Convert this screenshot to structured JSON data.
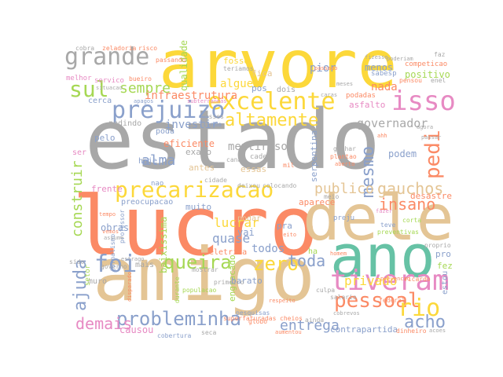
{
  "palette": {
    "gray": "#a8a8a8",
    "yellow": "#fcd83a",
    "tan": "#e4c595",
    "coral": "#fb8a65",
    "teal": "#66c2a5",
    "blue": "#8aa0cb",
    "green": "#a6d854",
    "pink": "#e78ac3"
  },
  "words": [
    {
      "text": "estado",
      "color": "gray"
    },
    {
      "text": "lucro",
      "color": "coral"
    },
    {
      "text": "arvore",
      "color": "yellow"
    },
    {
      "text": "amigo",
      "color": "tan"
    },
    {
      "text": "dele",
      "color": "tan"
    },
    {
      "text": "ano",
      "color": "teal"
    },
    {
      "text": "tiveram",
      "color": "pink"
    },
    {
      "text": "precarizacao",
      "color": "yellow"
    },
    {
      "text": "excelente",
      "color": "yellow"
    },
    {
      "text": "prejuizo",
      "color": "blue"
    },
    {
      "text": "grande",
      "color": "gray"
    },
    {
      "text": "isso",
      "color": "pink"
    },
    {
      "text": "altamente",
      "color": "yellow"
    },
    {
      "text": "sul",
      "color": "green"
    },
    {
      "text": "pessoal",
      "color": "coral"
    },
    {
      "text": "rio",
      "color": "yellow"
    },
    {
      "text": "probleminha",
      "color": "blue"
    },
    {
      "text": "foi",
      "color": "blue"
    },
    {
      "text": "zero",
      "color": "yellow"
    },
    {
      "text": "queira",
      "color": "green"
    },
    {
      "text": "acho",
      "color": "blue"
    },
    {
      "text": "pedi",
      "color": "coral"
    },
    {
      "text": "mesmo",
      "color": "blue"
    },
    {
      "text": "governador",
      "color": "gray"
    },
    {
      "text": "insano",
      "color": "coral"
    },
    {
      "text": "gauchos",
      "color": "tan"
    },
    {
      "text": "publico",
      "color": "tan"
    },
    {
      "text": "privado",
      "color": "yellow"
    },
    {
      "text": "construir",
      "color": "green"
    },
    {
      "text": "ajuda",
      "color": "blue"
    },
    {
      "text": "demais",
      "color": "pink"
    },
    {
      "text": "toda",
      "color": "blue"
    },
    {
      "text": "todos",
      "color": "blue"
    },
    {
      "text": "sempre",
      "color": "green"
    },
    {
      "text": "investir",
      "color": "blue"
    },
    {
      "text": "alma",
      "color": "blue"
    },
    {
      "text": "infraestrutura",
      "color": "coral"
    },
    {
      "text": "mentiroso",
      "color": "gray"
    },
    {
      "text": "entrega",
      "color": "blue"
    },
    {
      "text": "quase",
      "color": "blue"
    },
    {
      "text": "lucrar",
      "color": "yellow"
    },
    {
      "text": "nada",
      "color": "coral"
    },
    {
      "text": "menos",
      "color": "blue"
    },
    {
      "text": "pior",
      "color": "blue"
    },
    {
      "text": "alguem",
      "color": "yellow"
    },
    {
      "text": "qualidade",
      "color": "green"
    },
    {
      "text": "podem",
      "color": "blue"
    },
    {
      "text": "desastre",
      "color": "coral"
    },
    {
      "text": "asfalto",
      "color": "pink"
    },
    {
      "text": "serpentina",
      "color": "blue"
    },
    {
      "text": "eficiente",
      "color": "coral"
    },
    {
      "text": "exato",
      "color": "gray"
    },
    {
      "text": "vai",
      "color": "blue"
    },
    {
      "text": "obras",
      "color": "blue"
    },
    {
      "text": "muito",
      "color": "blue"
    },
    {
      "text": "baixissima",
      "color": "green"
    },
    {
      "text": "engracado",
      "color": "green"
    },
    {
      "text": "barato",
      "color": "blue"
    },
    {
      "text": "contrapartida",
      "color": "blue"
    },
    {
      "text": "causou",
      "color": "pink"
    },
    {
      "text": "frente",
      "color": "pink"
    },
    {
      "text": "preocupacao",
      "color": "blue"
    },
    {
      "text": "positivo",
      "color": "green"
    },
    {
      "text": "competicao",
      "color": "coral"
    },
    {
      "text": "melhor",
      "color": "pink"
    },
    {
      "text": "servico",
      "color": "pink"
    },
    {
      "text": "fica",
      "color": "tan"
    },
    {
      "text": "fosse",
      "color": "yellow"
    },
    {
      "text": "dois",
      "color": "gray"
    },
    {
      "text": "pos",
      "color": "blue"
    },
    {
      "text": "pedindo",
      "color": "gray"
    },
    {
      "text": "hoje",
      "color": "blue"
    },
    {
      "text": "cerca",
      "color": "blue"
    },
    {
      "text": "poda",
      "color": "blue"
    },
    {
      "text": "antes",
      "color": "tan"
    },
    {
      "text": "pelo",
      "color": "blue"
    },
    {
      "text": "ser",
      "color": "pink"
    },
    {
      "text": "nao",
      "color": "blue"
    },
    {
      "text": "essas",
      "color": "tan"
    },
    {
      "text": "cade",
      "color": "gray"
    },
    {
      "text": "podar",
      "color": "tan"
    },
    {
      "text": "eletrica",
      "color": "coral"
    },
    {
      "text": "pra",
      "color": "blue"
    },
    {
      "text": "aparece",
      "color": "coral"
    },
    {
      "text": "ha",
      "color": "green"
    },
    {
      "text": "mais",
      "color": "gray"
    },
    {
      "text": "muro",
      "color": "gray"
    },
    {
      "text": "estou",
      "color": "blue"
    },
    {
      "text": "fez",
      "color": "green"
    },
    {
      "text": "pro",
      "color": "blue"
    },
    {
      "text": "sabesp",
      "color": "blue"
    },
    {
      "text": "podadas",
      "color": "coral"
    },
    {
      "text": "ganhar",
      "color": "gray"
    },
    {
      "text": "plantao",
      "color": "coral"
    },
    {
      "text": "preju",
      "color": "blue"
    },
    {
      "text": "teve",
      "color": "blue"
    },
    {
      "text": "preventivas",
      "color": "green"
    },
    {
      "text": "corta",
      "color": "green"
    },
    {
      "text": "pensou",
      "color": "coral"
    },
    {
      "text": "enel",
      "color": "gray"
    },
    {
      "text": "linda",
      "color": "blue"
    },
    {
      "text": "desses",
      "color": "gray"
    },
    {
      "text": "canal",
      "color": "gray"
    },
    {
      "text": "mil",
      "color": "coral"
    },
    {
      "text": "faz",
      "color": "gray"
    },
    {
      "text": "cobra",
      "color": "gray"
    },
    {
      "text": "zeladoria",
      "color": "coral"
    },
    {
      "text": "risco",
      "color": "coral"
    },
    {
      "text": "passando",
      "color": "coral"
    },
    {
      "text": "bueiro",
      "color": "coral"
    },
    {
      "text": "teriamos",
      "color": "gray"
    },
    {
      "text": "deixou",
      "color": "gray"
    },
    {
      "text": "colocando",
      "color": "gray"
    },
    {
      "text": "cidade",
      "color": "gray"
    },
    {
      "text": "meio",
      "color": "gray"
    },
    {
      "text": "sido",
      "color": "gray"
    },
    {
      "text": "governo",
      "color": "gray"
    },
    {
      "text": "mostrar",
      "color": "gray"
    },
    {
      "text": "durante",
      "color": "green"
    },
    {
      "text": "pesquisas",
      "color": "blue"
    },
    {
      "text": "superfaturadas",
      "color": "coral"
    },
    {
      "text": "passado",
      "color": "coral"
    },
    {
      "text": "culpa",
      "color": "gray"
    },
    {
      "text": "salario",
      "color": "gray"
    },
    {
      "text": "federal",
      "color": "coral"
    },
    {
      "text": "ricardo",
      "color": "coral"
    },
    {
      "text": "proprio",
      "color": "gray"
    },
    {
      "text": "globo",
      "color": "coral"
    },
    {
      "text": "cheios",
      "color": "coral"
    },
    {
      "text": "aumentou",
      "color": "coral"
    },
    {
      "text": "ainda",
      "color": "gray"
    },
    {
      "text": "cobrevos",
      "color": "gray"
    },
    {
      "text": "cobertura",
      "color": "blue"
    },
    {
      "text": "seca",
      "color": "gray"
    },
    {
      "text": "acoes",
      "color": "gray"
    },
    {
      "text": "dinheiro",
      "color": "coral"
    },
    {
      "text": "populacao",
      "color": "green"
    },
    {
      "text": "primeiro",
      "color": "gray"
    },
    {
      "text": "jornalismo",
      "color": "blue"
    },
    {
      "text": "professor",
      "color": "blue"
    },
    {
      "text": "vemos",
      "color": "coral"
    },
    {
      "text": "assume",
      "color": "gray"
    },
    {
      "text": "setor",
      "color": "green"
    },
    {
      "text": "estrago",
      "color": "gray"
    },
    {
      "text": "disparado",
      "color": "coral"
    },
    {
      "text": "respeito",
      "color": "coral"
    },
    {
      "text": "prevencao",
      "color": "coral"
    },
    {
      "text": "homem",
      "color": "coral"
    },
    {
      "text": "feito",
      "color": "coral"
    },
    {
      "text": "fazer",
      "color": "pink"
    },
    {
      "text": "tempo",
      "color": "coral"
    },
    {
      "text": "agora",
      "color": "gray"
    },
    {
      "text": "caras",
      "color": "gray"
    },
    {
      "text": "poderiam",
      "color": "gray"
    },
    {
      "text": "fizesse",
      "color": "gray"
    },
    {
      "text": "meses",
      "color": "gray"
    },
    {
      "text": "situacao",
      "color": "gray"
    },
    {
      "text": "ahh",
      "color": "coral"
    },
    {
      "text": "passar",
      "color": "gray"
    },
    {
      "text": "aberto",
      "color": "coral"
    },
    {
      "text": "apagos",
      "color": "blue"
    },
    {
      "text": "subterraneas",
      "color": "pink"
    },
    {
      "text": "scopo",
      "color": "gray"
    },
    {
      "text": "esta",
      "color": "gray"
    },
    {
      "text": "picole",
      "color": "green"
    },
    {
      "text": "panos",
      "color": "gray"
    },
    {
      "text": "contaram",
      "color": "gray"
    },
    {
      "text": "limpo",
      "color": "gray"
    },
    {
      "text": "ter",
      "color": "gray"
    },
    {
      "text": "alguns",
      "color": "gray"
    },
    {
      "text": "aumentado",
      "color": "coral"
    },
    {
      "text": "curto",
      "color": "gray"
    },
    {
      "text": "coisas",
      "color": "gray"
    },
    {
      "text": "apagao",
      "color": "gray"
    },
    {
      "text": "emergenciais",
      "color": "pink"
    },
    {
      "text": "investimento",
      "color": "gray"
    },
    {
      "text": "pedidos",
      "color": "gray"
    },
    {
      "text": "tanto",
      "color": "gray"
    },
    {
      "text": "milhoes",
      "color": "gray"
    },
    {
      "text": "bocado",
      "color": "gray"
    },
    {
      "text": "combinacao",
      "color": "gray"
    },
    {
      "text": "desempenho",
      "color": "gray"
    },
    {
      "text": "guarulhos",
      "color": "gray"
    },
    {
      "text": "caiu",
      "color": "gray"
    },
    {
      "text": "campo",
      "color": "gray"
    },
    {
      "text": "forca",
      "color": "gray"
    },
    {
      "text": "queriam",
      "color": "gray"
    },
    {
      "text": "tarde",
      "color": "gray"
    },
    {
      "text": "entao",
      "color": "gray"
    },
    {
      "text": "deve",
      "color": "gray"
    },
    {
      "text": "recente",
      "color": "gray"
    },
    {
      "text": "ruas",
      "color": "gray"
    },
    {
      "text": "bom",
      "color": "gray"
    },
    {
      "text": "tudo",
      "color": "gray"
    },
    {
      "text": "bairro",
      "color": "gray"
    },
    {
      "text": "sobre",
      "color": "gray"
    },
    {
      "text": "vez",
      "color": "gray"
    },
    {
      "text": "tambem",
      "color": "gray"
    },
    {
      "text": "voces",
      "color": "gray"
    },
    {
      "text": "pois",
      "color": "gray"
    },
    {
      "text": "luz",
      "color": "gray"
    },
    {
      "text": "dia",
      "color": "gray"
    },
    {
      "text": "sp",
      "color": "gray"
    }
  ]
}
